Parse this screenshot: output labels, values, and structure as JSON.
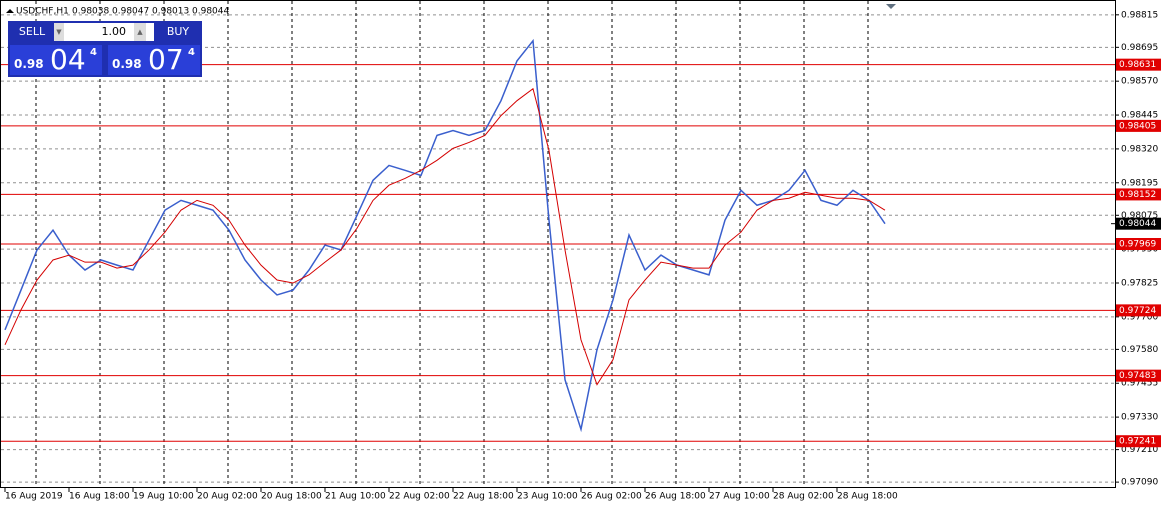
{
  "chart_data": {
    "type": "line",
    "symbol": "USDCHF,H1",
    "ohlc": [
      0.98038,
      0.98047,
      0.98013,
      0.98044
    ],
    "categories": [
      "16 Aug 2019",
      null,
      null,
      null,
      "16 Aug 18:00",
      null,
      null,
      null,
      "19 Aug 10:00",
      null,
      null,
      null,
      "20 Aug 02:00",
      null,
      null,
      null,
      "20 Aug 18:00",
      null,
      null,
      null,
      "21 Aug 10:00",
      null,
      null,
      null,
      "22 Aug 02:00",
      null,
      null,
      null,
      "22 Aug 18:00",
      null,
      null,
      null,
      "23 Aug 10:00",
      null,
      null,
      null,
      "26 Aug 02:00",
      null,
      null,
      null,
      "26 Aug 18:00",
      null,
      null,
      null,
      "27 Aug 10:00",
      null,
      null,
      null,
      "28 Aug 02:00",
      null,
      null,
      null,
      "28 Aug 18:00",
      null,
      null,
      null
    ],
    "series": [
      {
        "color": "#3a5fcd",
        "values": [
          0.97652,
          0.97799,
          0.97947,
          0.9802,
          0.97928,
          0.97873,
          0.9791,
          0.97891,
          0.97873,
          0.97983,
          0.98094,
          0.9813,
          0.98112,
          0.98094,
          0.9802,
          0.9791,
          0.97836,
          0.97781,
          0.97799,
          0.97873,
          0.97965,
          0.97947,
          0.98075,
          0.98204,
          0.98259,
          0.98241,
          0.98222,
          0.9837,
          0.98388,
          0.9837,
          0.98388,
          0.98498,
          0.98645,
          0.98719,
          0.98057,
          0.97468,
          0.97285,
          0.97579,
          0.97763,
          0.98002,
          0.97873,
          0.97928,
          0.97891,
          0.97873,
          0.97855,
          0.98057,
          0.98167,
          0.98112,
          0.9813,
          0.98167,
          0.98241,
          0.9813,
          0.98112,
          0.98167,
          0.9813,
          0.98044
        ]
      },
      {
        "color": "#d40000",
        "values": [
          0.97597,
          0.97726,
          0.97836,
          0.9791,
          0.97928,
          0.97902,
          0.97902,
          0.9788,
          0.97891,
          0.97947,
          0.98013,
          0.98094,
          0.9813,
          0.98112,
          0.98057,
          0.97965,
          0.97891,
          0.97836,
          0.97825,
          0.97855,
          0.97902,
          0.97947,
          0.98027,
          0.9813,
          0.98186,
          0.98211,
          0.98241,
          0.98278,
          0.98322,
          0.98344,
          0.9837,
          0.98443,
          0.98498,
          0.98542,
          0.98314,
          0.97947,
          0.97615,
          0.9745,
          0.97542,
          0.97763,
          0.97836,
          0.97902,
          0.97891,
          0.9788,
          0.9788,
          0.97965,
          0.98013,
          0.98094,
          0.9813,
          0.98138,
          0.9816,
          0.98149,
          0.98138,
          0.98138,
          0.9813,
          0.98094
        ]
      }
    ],
    "ylim": [
      0.97072,
      0.98866
    ],
    "yticks": [
      0.98815,
      0.98695,
      {
        "value": 0.9857,
        "label": "0.98570"
      },
      0.98445,
      {
        "value": 0.9832,
        "label": "0.98320"
      },
      0.98195,
      0.98075,
      {
        "value": 0.9795,
        "label": "0.97950"
      },
      0.97825,
      {
        "value": 0.977,
        "label": "0.97700"
      },
      {
        "value": 0.9758,
        "label": "0.97580"
      },
      0.97455,
      {
        "value": 0.9733,
        "label": "0.97330"
      },
      {
        "value": 0.9721,
        "label": "0.97210"
      },
      {
        "value": 0.9709,
        "label": "0.97090"
      }
    ],
    "grid": true,
    "levels": [
      0.98631,
      0.98405,
      0.98152,
      0.97969,
      0.97724,
      0.97483,
      0.97241
    ],
    "level_color": "#e00000",
    "current_price": 0.98044,
    "trade_panel": {
      "sell": "SELL",
      "buy": "BUY",
      "lot": "1.00",
      "sell_price": [
        "0.98",
        "04",
        "4"
      ],
      "buy_price": [
        "0.98",
        "07",
        "4"
      ]
    }
  }
}
